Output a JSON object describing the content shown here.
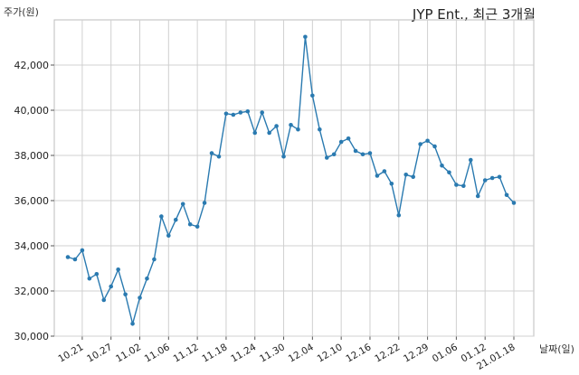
{
  "chart_data": {
    "type": "line",
    "title": "JYP Ent., 최근 3개월",
    "xlabel": "날짜(일)",
    "ylabel": "주가(원)",
    "ylim": [
      30000,
      44000
    ],
    "yticks": [
      30000,
      32000,
      34000,
      36000,
      38000,
      40000,
      42000
    ],
    "ytick_labels": [
      "30,000",
      "32,000",
      "34,000",
      "36,000",
      "38,000",
      "40,000",
      "42,000"
    ],
    "xtick_labels": [
      "10.21",
      "10.27",
      "11.02",
      "11.06",
      "11.12",
      "11.18",
      "11.24",
      "11.30",
      "12.04",
      "12.10",
      "12.16",
      "12.22",
      "12.29",
      "01.06",
      "01.12",
      "21.01.18"
    ],
    "xtick_indices": [
      2,
      6,
      10,
      14,
      18,
      22,
      26,
      30,
      34,
      38,
      42,
      46,
      50,
      54,
      58,
      62
    ],
    "grid": true,
    "series": [
      {
        "color": "#2a7ab0",
        "values": [
          33500,
          33400,
          33800,
          32550,
          32750,
          31600,
          32200,
          32950,
          31850,
          30550,
          31700,
          32550,
          33400,
          35300,
          34450,
          35150,
          35850,
          34950,
          34850,
          35900,
          38100,
          37950,
          39850,
          39800,
          39900,
          39950,
          39000,
          39900,
          39000,
          39300,
          37950,
          39350,
          39150,
          43250,
          40650,
          39150,
          37900,
          38050,
          38600,
          38750,
          38200,
          38050,
          38100,
          37100,
          37300,
          36750,
          35350,
          37150,
          37050,
          38500,
          38650,
          38400,
          37550,
          37250,
          36700,
          36650,
          37800,
          36200,
          36900,
          37000,
          37050,
          36250,
          35900
        ]
      }
    ]
  }
}
